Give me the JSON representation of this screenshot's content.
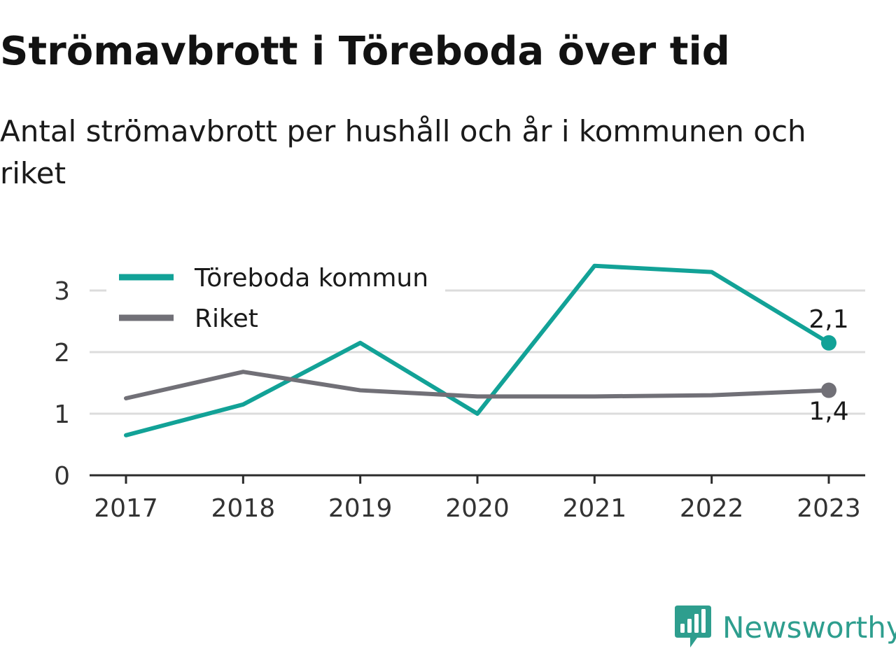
{
  "title": "Strömavbrott i Töreboda över tid",
  "subtitle": "Antal strömavbrott per hushåll och år i kommunen och riket",
  "brand": {
    "name": "Newsworthy",
    "logo_icon": "bar-chart-speech-bubble-icon",
    "color": "#2e9e8e"
  },
  "chart_data": {
    "type": "line",
    "x": [
      "2017",
      "2018",
      "2019",
      "2020",
      "2021",
      "2022",
      "2023"
    ],
    "y_ticks": [
      "0",
      "1",
      "2",
      "3"
    ],
    "ylim": [
      0,
      3.5
    ],
    "grid": true,
    "legend_position": "top-left",
    "series": [
      {
        "name": "Töreboda kommun",
        "color": "#12a297",
        "values": [
          0.65,
          1.15,
          2.15,
          1.0,
          3.4,
          3.3,
          2.15
        ],
        "end_label": "2,1"
      },
      {
        "name": "Riket",
        "color": "#717077",
        "values": [
          1.25,
          1.68,
          1.38,
          1.28,
          1.28,
          1.3,
          1.38
        ],
        "end_label": "1,4"
      }
    ]
  }
}
